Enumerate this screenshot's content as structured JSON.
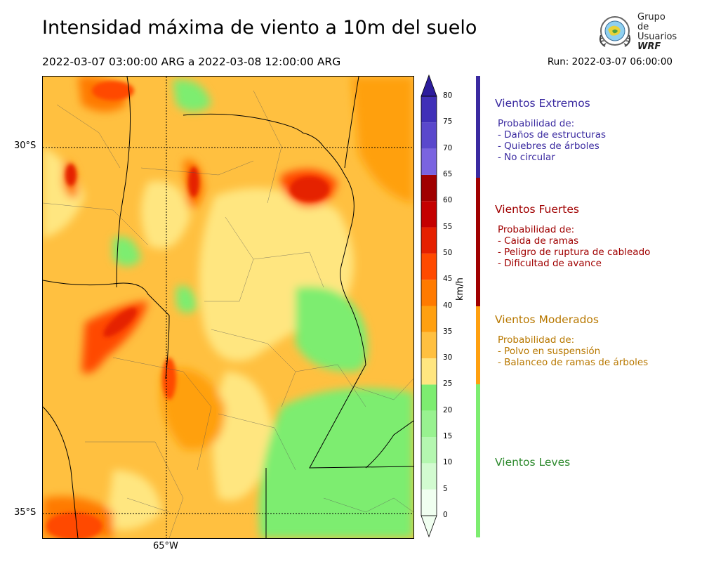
{
  "header": {
    "title": "Intensidad máxima de viento a 10m del suelo",
    "period": "2022-03-07 03:00:00 ARG  a  2022-03-08 12:00:00 ARG",
    "run": "Run: 2022-03-07 06:00:00"
  },
  "logo": {
    "line1": "Grupo de",
    "line2": "Usuarios",
    "line3": "WRF"
  },
  "map": {
    "lat_labels": [
      "30°S",
      "35°S"
    ],
    "lon_labels": [
      "65°W"
    ]
  },
  "colorbar": {
    "unit": "km/h",
    "ticks": [
      "0",
      "5",
      "10",
      "15",
      "20",
      "25",
      "30",
      "35",
      "40",
      "45",
      "50",
      "55",
      "60",
      "65",
      "70",
      "75",
      "80"
    ],
    "colors": [
      "#f0fff0",
      "#d2fbd0",
      "#b4f7b0",
      "#98f290",
      "#7ded70",
      "#ffe680",
      "#ffc040",
      "#ffa010",
      "#ff7a00",
      "#ff4a00",
      "#e52000",
      "#c40000",
      "#a00000",
      "#7a64e0",
      "#5a48cc",
      "#4030b8",
      "#2c1c9c"
    ]
  },
  "legend": {
    "extremos": {
      "title": "Vientos Extremos",
      "heading": "Probabilidad de:",
      "items": [
        "- Daños de estructuras",
        "- Quiebres de árboles",
        "- No circular"
      ],
      "color": "#3a2aa0"
    },
    "fuertes": {
      "title": "Vientos Fuertes",
      "heading": "Probabilidad de:",
      "items": [
        "- Caida de ramas",
        "- Peligro de ruptura de cableado",
        "- Dificultad de avance"
      ],
      "color": "#a00000"
    },
    "moderados": {
      "title": "Vientos Moderados",
      "heading": "Probabilidad de:",
      "items": [
        "- Polvo en suspensión",
        "- Balanceo de ramas de árboles"
      ],
      "color": "#b87800"
    },
    "leves": {
      "title": "Vientos Leves",
      "color": "#2e8a2e"
    }
  }
}
